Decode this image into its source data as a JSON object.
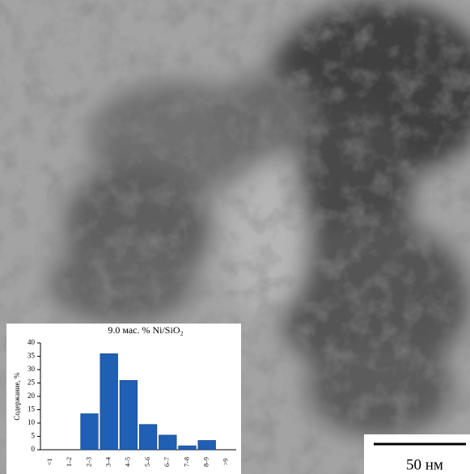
{
  "chart_data": {
    "type": "bar",
    "title": "9.0 мас. % Ni/SiO₂",
    "ylabel": "Содержание, %",
    "categories": [
      "<1",
      "1–2",
      "2–3",
      "3–4",
      "4–5",
      "5–6",
      "6–7",
      "7–8",
      "8–9",
      ">9"
    ],
    "values": [
      0,
      0,
      13.5,
      36,
      26,
      9.5,
      5.5,
      1.5,
      3.5,
      0
    ],
    "color": "#1f5fb4",
    "ylim": [
      0,
      40
    ],
    "yticks": [
      0,
      5,
      10,
      15,
      20,
      25,
      30,
      35,
      40
    ]
  },
  "scale_bar": "50 нм"
}
